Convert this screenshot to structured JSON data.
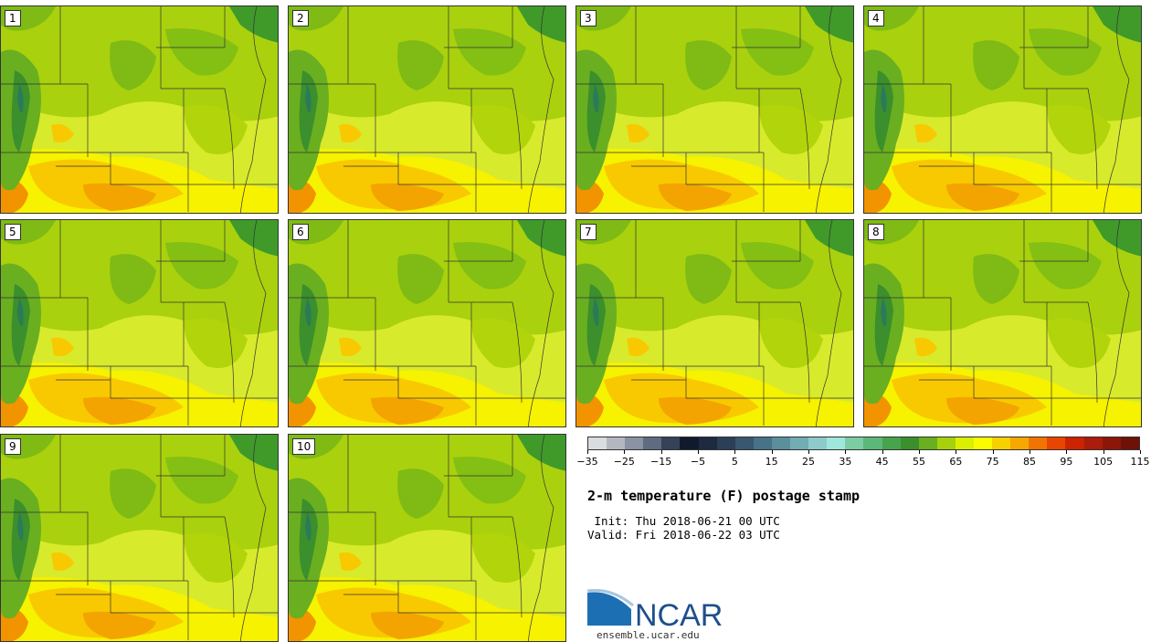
{
  "panels": [
    {
      "label": "1"
    },
    {
      "label": "2"
    },
    {
      "label": "3"
    },
    {
      "label": "4"
    },
    {
      "label": "5"
    },
    {
      "label": "6"
    },
    {
      "label": "7"
    },
    {
      "label": "8"
    },
    {
      "label": "9"
    },
    {
      "label": "10"
    }
  ],
  "colorbar": {
    "colors": [
      "#d9dce0",
      "#b3b8c0",
      "#8a93a2",
      "#5f6b80",
      "#35425a",
      "#111a2c",
      "#1d2a40",
      "#2b3f58",
      "#395870",
      "#477287",
      "#5b8f9c",
      "#72adb4",
      "#8ccbca",
      "#9fe6dc",
      "#7ccda3",
      "#5cb879",
      "#48a44c",
      "#3b8f2c",
      "#6aaf20",
      "#a6d10c",
      "#dbef00",
      "#fbfb00",
      "#f7d000",
      "#f6a800",
      "#f27400",
      "#e84500",
      "#cc2300",
      "#aa1c0c",
      "#8c1608",
      "#6e1208"
    ],
    "tick_labels": [
      "-35",
      "-25",
      "-15",
      "-5",
      "5",
      "15",
      "25",
      "35",
      "45",
      "55",
      "65",
      "75",
      "85",
      "95",
      "105",
      "115"
    ]
  },
  "title": "2-m temperature (F) postage stamp",
  "init_line": " Init: Thu 2018-06-21 00 UTC",
  "valid_line": "Valid: Fri 2018-06-22 03 UTC",
  "logo": {
    "text": "NCAR",
    "url": "ensemble.ucar.edu"
  }
}
